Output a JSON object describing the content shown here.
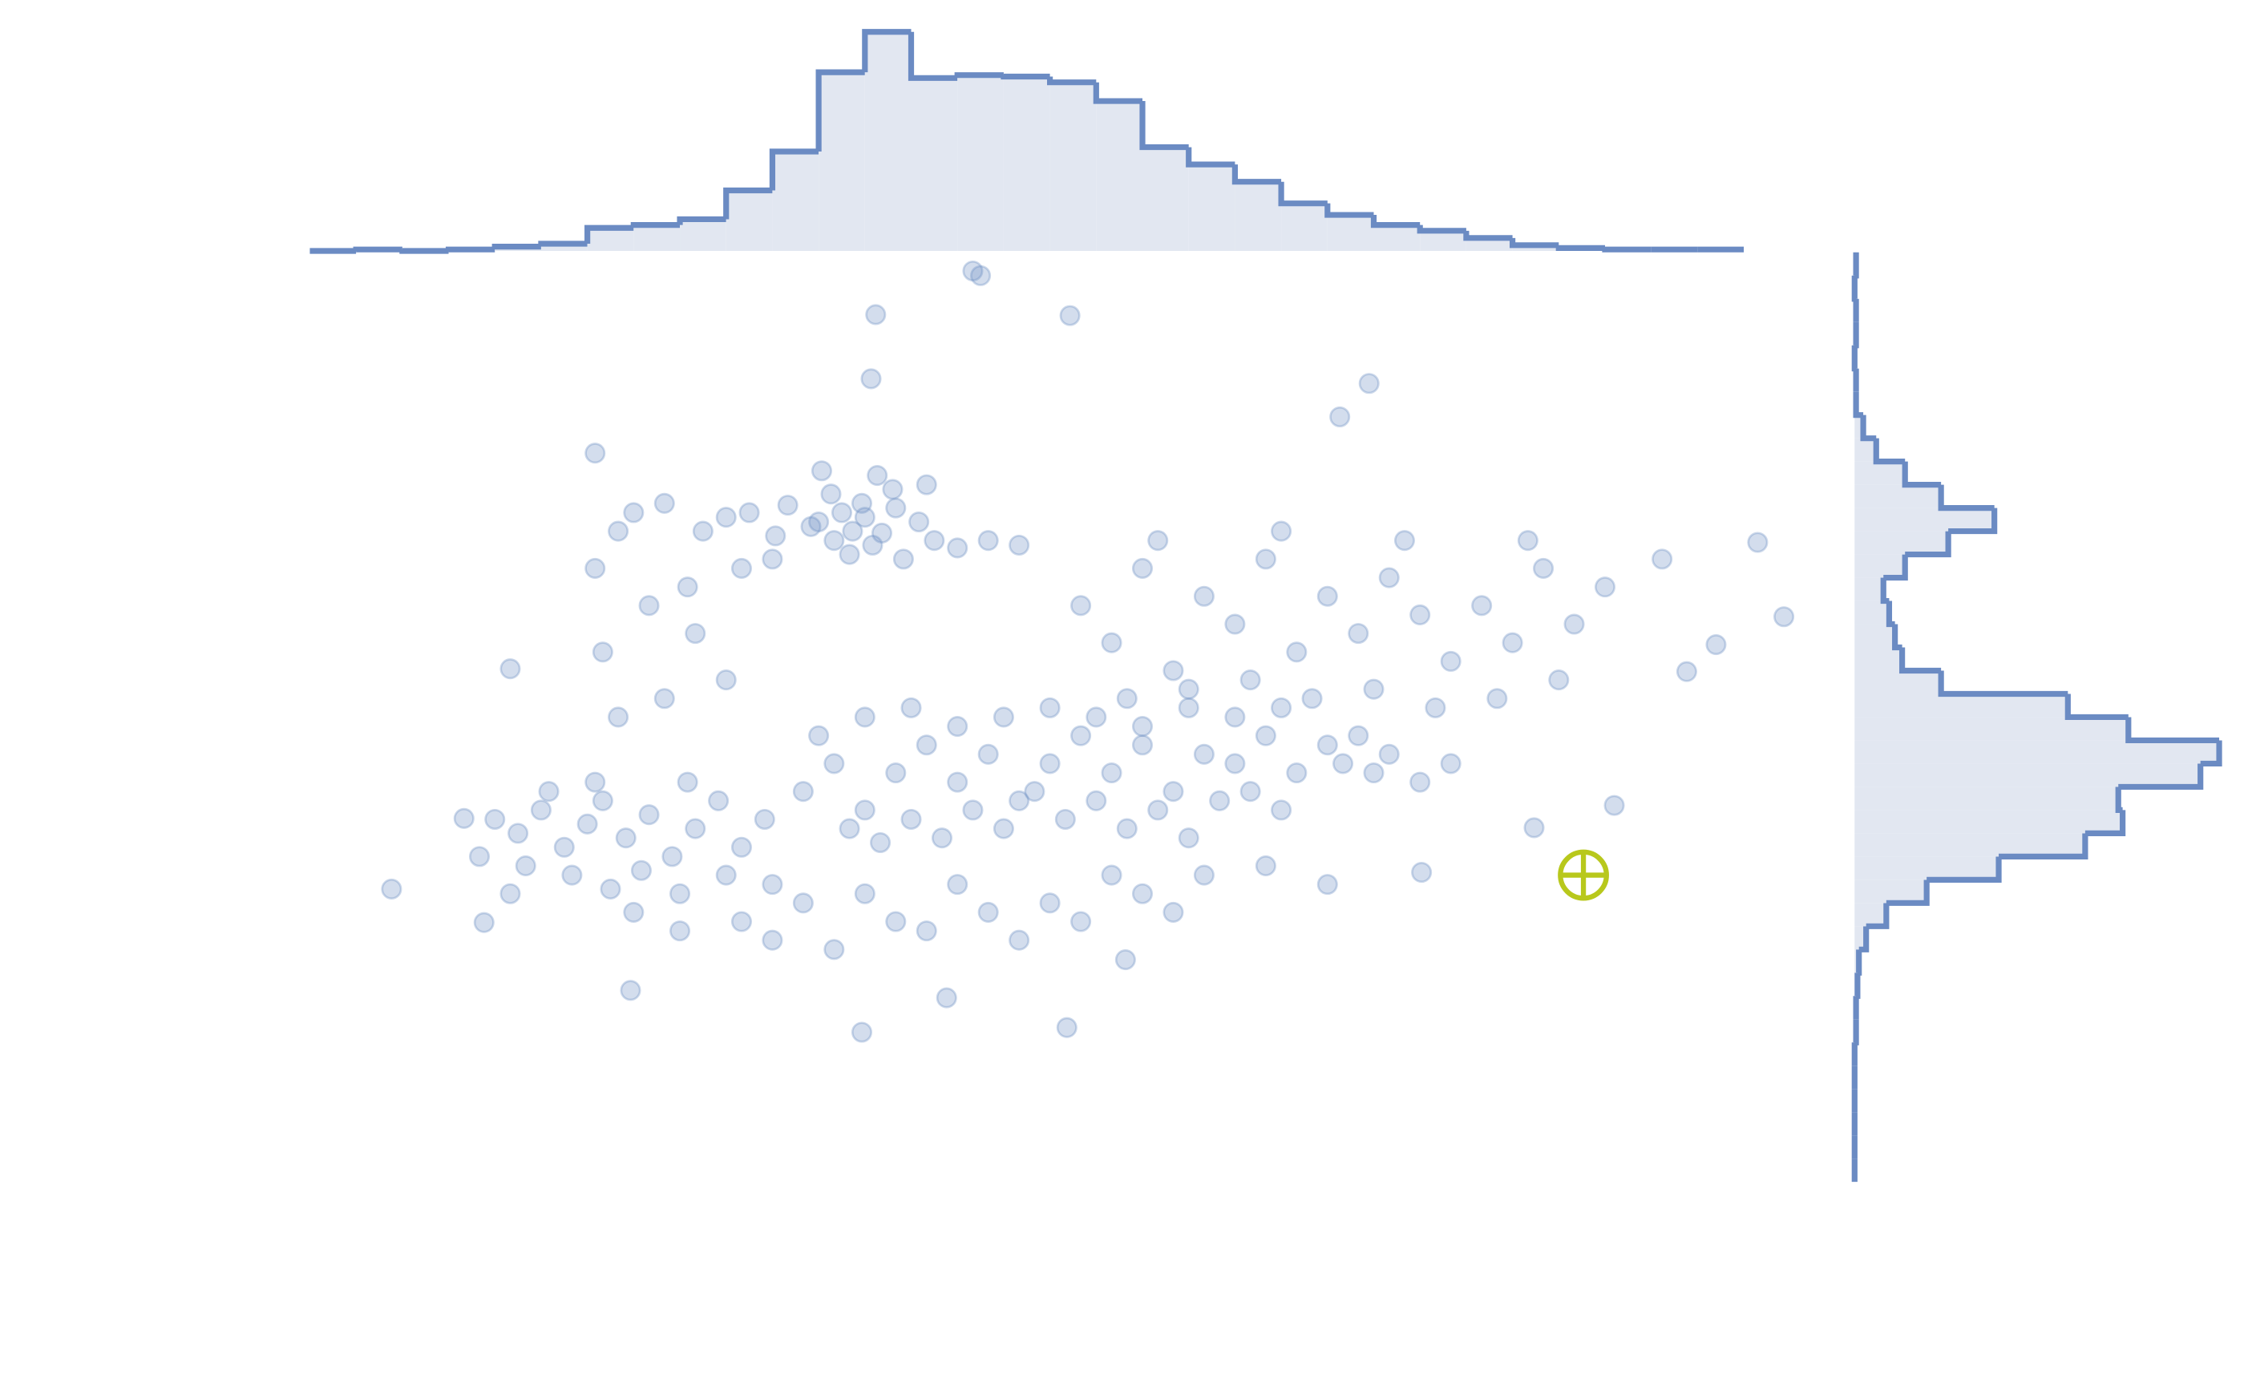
{
  "chart_data": [
    {
      "type": "scatter",
      "xlim": [
        0,
        100
      ],
      "ylim": [
        0,
        100
      ],
      "series": [
        {
          "color": "#6e8fc4",
          "x": [
            43,
            43.5,
            36.7,
            49.3,
            36.4,
            68.7,
            66.8,
            18.5,
            5.3,
            13,
            35.8,
            49.1,
            41.3,
            20.8,
            95.6,
            93.9,
            87.7,
            91.2,
            89.3,
            84.6,
            79.4,
            72.1,
            52.9,
            10,
            11.3,
            33,
            34.5,
            35.2,
            36,
            37.1,
            34,
            32.5,
            35.8,
            38,
            36.5,
            33.8,
            31,
            39.5,
            35,
            37.8,
            30.2,
            28.5,
            27,
            40.5,
            42,
            44,
            46,
            25.5,
            23,
            21,
            36.8,
            33.2,
            40,
            30,
            38.5,
            32,
            34,
            36,
            38,
            40,
            42,
            44,
            46,
            48,
            50,
            52,
            54,
            56,
            58,
            60,
            62,
            64,
            66,
            35,
            37,
            39,
            41,
            43,
            45,
            47,
            49,
            51,
            53,
            55,
            57,
            59,
            61,
            63,
            33,
            36,
            39,
            42,
            45,
            48,
            51,
            54,
            57,
            60,
            63,
            67,
            69,
            70,
            72,
            74,
            68,
            12,
            13.5,
            15,
            16.5,
            18,
            19,
            20.5,
            22,
            23.5,
            25,
            26.5,
            28,
            29.5,
            14,
            17,
            19.5,
            21.5,
            24,
            27,
            30,
            15.5,
            18.5,
            24.5,
            11,
            13,
            50,
            52,
            54,
            56,
            58,
            60,
            62,
            64,
            66,
            68,
            70,
            72,
            74,
            76,
            78,
            80,
            82,
            53,
            57,
            61,
            65,
            69,
            73,
            77,
            81,
            55,
            63,
            71,
            79,
            84,
            28,
            30,
            32,
            34,
            36,
            38,
            40,
            42,
            44,
            46,
            48,
            50,
            52,
            54,
            56,
            58,
            24,
            21,
            62,
            66,
            19,
            22,
            25,
            27,
            20,
            23,
            28,
            20,
            18.5,
            24.5
          ],
          "values": [
            98,
            97.5,
            93.3,
            93.2,
            86.4,
            85.9,
            82.3,
            78.4,
            31.5,
            55.2,
            16.1,
            16.6,
            19.8,
            20.6,
            60.8,
            68.8,
            67,
            57.8,
            54.9,
            40.5,
            38.1,
            33.3,
            23.9,
            39.1,
            27.9,
            71,
            72,
            70,
            71.5,
            69.8,
            69,
            70.5,
            73,
            72.5,
            68.5,
            74,
            72.8,
            71,
            67.5,
            74.5,
            69.5,
            72,
            71.5,
            69,
            68.2,
            69,
            68.5,
            70,
            73,
            72,
            76,
            76.5,
            75,
            67,
            67,
            42,
            45,
            40,
            44,
            47,
            43,
            46,
            41,
            45,
            48,
            44,
            47,
            42,
            46,
            45,
            48,
            44,
            47,
            38,
            36.5,
            39,
            37,
            40,
            38,
            42,
            39,
            41,
            38,
            40,
            37,
            41,
            42,
            40,
            48,
            50,
            51,
            49,
            50,
            51,
            50,
            49,
            51,
            50,
            51,
            45,
            44,
            46,
            43,
            45,
            48,
            39,
            37.5,
            40,
            36,
            38.5,
            41,
            37,
            39.5,
            35,
            38,
            41,
            36,
            39,
            34,
            33,
            31.5,
            33.5,
            31,
            33,
            32,
            42,
            43,
            43,
            35,
            31,
            62,
            58,
            66,
            55,
            63,
            60,
            67,
            57,
            63,
            59,
            65,
            61,
            56,
            62,
            58,
            66,
            60,
            52,
            53,
            54,
            52,
            53,
            51,
            52,
            54,
            69,
            70,
            69,
            69,
            64,
            28,
            26,
            30,
            25,
            31,
            28,
            27,
            32,
            29,
            26,
            30,
            28,
            33,
            31,
            29,
            33,
            27,
            29,
            34,
            32,
            57,
            62,
            59,
            54,
            50,
            52,
            66,
            70,
            66,
            64
          ]
        },
        {
          "color": "#b8c81c",
          "marker": "crosshair",
          "x": [
            82.6
          ],
          "values": [
            33
          ]
        }
      ]
    },
    {
      "type": "histogram",
      "orientation": "vertical",
      "color": "#6b8bc3",
      "fill": "#e2e7f1",
      "xlim": [
        0,
        100
      ],
      "ylim": [
        0,
        160
      ],
      "bins": [
        0,
        3,
        6,
        9,
        12,
        15,
        18,
        21,
        24,
        27,
        30,
        33,
        36,
        39,
        42,
        45,
        48,
        51,
        54,
        57,
        60,
        63,
        66,
        69,
        72,
        75,
        78,
        81,
        84,
        87,
        90,
        93
      ],
      "counts": [
        0,
        1,
        0,
        1,
        3,
        5,
        16,
        18,
        22,
        42,
        69,
        124,
        152,
        120,
        122,
        121,
        117,
        104,
        72,
        60,
        48,
        33,
        25,
        18,
        14,
        9,
        4,
        2,
        1,
        1,
        1
      ]
    },
    {
      "type": "histogram",
      "orientation": "horizontal",
      "color": "#6b8bc3",
      "fill": "#e2e7f1",
      "ylim": [
        0,
        100
      ],
      "xlim": [
        0,
        260
      ],
      "bins": [
        0,
        2.5,
        5,
        7.5,
        10,
        12.5,
        15,
        17.5,
        20,
        22.5,
        25,
        27.5,
        30,
        32.5,
        35,
        37.5,
        40,
        42.5,
        45,
        47.5,
        50,
        52.5,
        55,
        57.5,
        60,
        62.5,
        65,
        67.5,
        70,
        72.5,
        75,
        77.5,
        80,
        82.5,
        85,
        87.5,
        90,
        92.5,
        95,
        97.5,
        100
      ],
      "counts": [
        0,
        0,
        0,
        0,
        0,
        0,
        1,
        1,
        2,
        3,
        8,
        22,
        50,
        100,
        160,
        186,
        183,
        240,
        253,
        190,
        148,
        60,
        33,
        28,
        24,
        20,
        35,
        65,
        97,
        60,
        35,
        15,
        6,
        1,
        1,
        0,
        1,
        1,
        0,
        1
      ]
    }
  ]
}
